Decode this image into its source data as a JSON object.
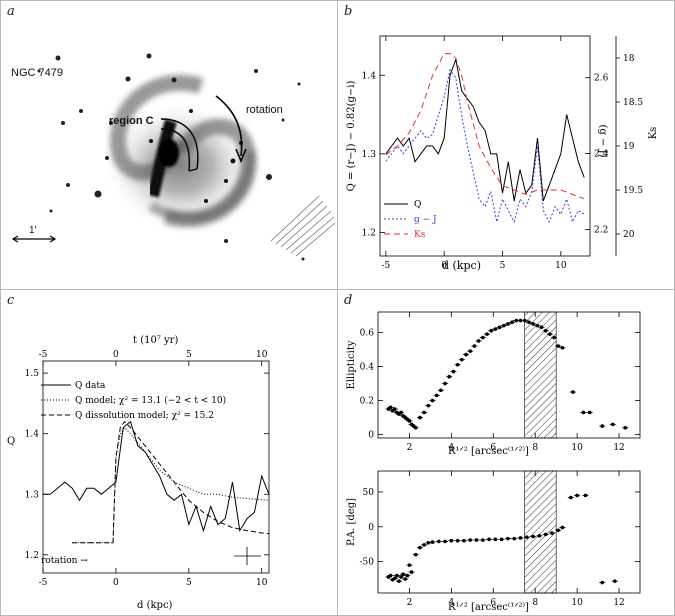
{
  "panels": {
    "a": {
      "label": "a",
      "galaxy_name": "NGC 7479",
      "region_label": "region C",
      "rotation_label": "rotation",
      "scale_label": "1′"
    },
    "b": {
      "label": "b",
      "y_left_label": "Q = (r−J) − 0.82(g−i)",
      "y_right1_label": "(g − J)",
      "y_right2_label": "Ks",
      "x_label": "d (kpc)",
      "legend": [
        "Q",
        "g − J",
        "Ks"
      ]
    },
    "c": {
      "label": "c",
      "top_axis_label": "t (10⁷ yr)",
      "x_label": "d (kpc)",
      "y_label": "Q",
      "legend": [
        "Q data",
        "Q model; χ² = 13.1 (−2 < t < 10)",
        "Q dissolution model; χ² = 15.2"
      ],
      "rotation_note": "rotation →"
    },
    "d": {
      "label": "d",
      "top_ylabel": "Ellipticity",
      "bottom_ylabel": "P.A. [deg]",
      "x_label": "R¹ᐟ² [arcsec⁽¹ᐟ²⁾]"
    }
  },
  "chart_data": [
    {
      "id": "b",
      "type": "line",
      "xlabel": "d (kpc)",
      "ylabel": "Q = (r−J) − 0.82(g−i)",
      "xlim": [
        -5.5,
        12.5
      ],
      "ylim": [
        1.17,
        1.45
      ],
      "x_ticks": [
        -5,
        0,
        5,
        10
      ],
      "y_ticks": [
        1.2,
        1.3,
        1.4
      ],
      "right_axes": [
        {
          "label": "(g − J)",
          "ticks": [
            2.2,
            2.4,
            2.6
          ],
          "range": [
            2.13,
            2.71
          ]
        },
        {
          "label": "Ks",
          "ticks": [
            18,
            18.5,
            19,
            19.5,
            20
          ],
          "range": [
            17.75,
            20.25
          ],
          "inverted": true
        }
      ],
      "series": [
        {
          "name": "Q",
          "color": "#000000",
          "dash": "",
          "axis": "left",
          "x": [
            -5,
            -4.5,
            -4,
            -3.5,
            -3,
            -2.5,
            -2,
            -1.5,
            -1,
            -0.5,
            0,
            0.5,
            1,
            1.5,
            2,
            2.5,
            3,
            3.5,
            4,
            4.5,
            5,
            5.5,
            6,
            6.5,
            7,
            7.5,
            8,
            8.5,
            9,
            9.5,
            10,
            10.5,
            11,
            11.5,
            12
          ],
          "values": [
            1.3,
            1.31,
            1.32,
            1.31,
            1.32,
            1.29,
            1.3,
            1.31,
            1.31,
            1.3,
            1.32,
            1.4,
            1.42,
            1.38,
            1.37,
            1.36,
            1.34,
            1.33,
            1.3,
            1.3,
            1.25,
            1.29,
            1.24,
            1.28,
            1.25,
            1.26,
            1.32,
            1.24,
            1.26,
            1.28,
            1.3,
            1.35,
            1.32,
            1.29,
            1.27
          ]
        },
        {
          "name": "g − J",
          "color": "#3b3bd6",
          "dash": "2,2",
          "axis": "right1",
          "x": [
            -5,
            -4.5,
            -4,
            -3.5,
            -3,
            -2.5,
            -2,
            -1.5,
            -1,
            -0.5,
            0,
            0.5,
            1,
            1.5,
            2,
            2.5,
            3,
            3.5,
            4,
            4.5,
            5,
            5.5,
            6,
            6.5,
            7,
            7.5,
            8,
            8.5,
            9,
            9.5,
            10,
            10.5,
            11,
            11.5,
            12
          ],
          "values": [
            2.38,
            2.4,
            2.42,
            2.4,
            2.42,
            2.44,
            2.46,
            2.44,
            2.45,
            2.5,
            2.55,
            2.62,
            2.6,
            2.5,
            2.42,
            2.35,
            2.28,
            2.26,
            2.3,
            2.22,
            2.28,
            2.25,
            2.22,
            2.28,
            2.26,
            2.3,
            2.42,
            2.25,
            2.22,
            2.26,
            2.24,
            2.28,
            2.22,
            2.25,
            2.24
          ]
        },
        {
          "name": "Ks",
          "color": "#e03030",
          "dash": "6,4",
          "axis": "right2",
          "x": [
            -5,
            -4,
            -3,
            -2,
            -1,
            0,
            0.5,
            1,
            1.5,
            2,
            3,
            4,
            5,
            6,
            7,
            8,
            9,
            10,
            11,
            12
          ],
          "values": [
            19.1,
            19.0,
            18.85,
            18.6,
            18.2,
            17.95,
            17.95,
            18.0,
            18.2,
            18.5,
            19.0,
            19.25,
            19.45,
            19.5,
            19.55,
            19.5,
            19.5,
            19.5,
            19.55,
            19.6
          ]
        }
      ]
    },
    {
      "id": "c",
      "type": "line",
      "xlabel": "d (kpc)",
      "ylabel": "Q",
      "top_xlabel": "t (10⁷ yr)",
      "xlim": [
        -5,
        10.5
      ],
      "ylim": [
        1.17,
        1.52
      ],
      "x_ticks": [
        -5,
        0,
        5,
        10
      ],
      "top_ticks": [
        -5,
        0,
        5,
        10
      ],
      "y_ticks": [
        1.2,
        1.3,
        1.4,
        1.5
      ],
      "series": [
        {
          "name": "Q data",
          "color": "#000000",
          "dash": "",
          "x": [
            -5,
            -4.5,
            -4,
            -3.5,
            -3,
            -2.5,
            -2,
            -1.5,
            -1,
            -0.5,
            0,
            0.5,
            1,
            1.5,
            2,
            2.5,
            3,
            3.5,
            4,
            4.5,
            5,
            5.5,
            6,
            6.5,
            7,
            7.5,
            8,
            8.5,
            9,
            9.5,
            10,
            10.5
          ],
          "values": [
            1.3,
            1.3,
            1.31,
            1.32,
            1.31,
            1.29,
            1.31,
            1.31,
            1.3,
            1.31,
            1.32,
            1.41,
            1.42,
            1.38,
            1.37,
            1.35,
            1.33,
            1.3,
            1.29,
            1.3,
            1.25,
            1.28,
            1.24,
            1.28,
            1.25,
            1.26,
            1.32,
            1.24,
            1.26,
            1.27,
            1.33,
            1.3
          ]
        },
        {
          "name": "Q model",
          "color": "#000000",
          "dash": "1,2",
          "x": [
            -3,
            -0.2,
            0,
            0.3,
            0.6,
            1,
            2,
            3,
            4,
            5,
            6,
            7,
            8,
            9,
            10,
            10.5
          ],
          "values": [
            1.22,
            1.22,
            1.36,
            1.4,
            1.41,
            1.4,
            1.37,
            1.34,
            1.32,
            1.31,
            1.3,
            1.3,
            1.295,
            1.293,
            1.291,
            1.29
          ]
        },
        {
          "name": "Q dissolution model",
          "color": "#000000",
          "dash": "5,3",
          "x": [
            -3,
            -0.2,
            0,
            0.3,
            0.6,
            1,
            2,
            3,
            4,
            5,
            6,
            7,
            8,
            9,
            10,
            10.5
          ],
          "values": [
            1.22,
            1.22,
            1.36,
            1.41,
            1.42,
            1.41,
            1.38,
            1.35,
            1.32,
            1.29,
            1.27,
            1.255,
            1.245,
            1.24,
            1.236,
            1.235
          ]
        }
      ]
    },
    {
      "id": "d-top",
      "type": "scatter",
      "xlabel": "R¹ᐟ² [arcsec⁽¹ᐟ²⁾]",
      "ylabel": "Ellipticity",
      "xlim": [
        0.5,
        13
      ],
      "ylim": [
        -0.02,
        0.72
      ],
      "x_ticks": [
        2,
        4,
        6,
        8,
        10,
        12
      ],
      "y_ticks": [
        0,
        0.2,
        0.4,
        0.6
      ],
      "shaded_x_range": [
        7.5,
        9
      ],
      "x": [
        1,
        1.1,
        1.2,
        1.3,
        1.4,
        1.5,
        1.6,
        1.7,
        1.8,
        1.9,
        2,
        2.1,
        2.2,
        2.3,
        2.5,
        2.7,
        2.9,
        3.1,
        3.3,
        3.5,
        3.7,
        3.9,
        4.1,
        4.3,
        4.5,
        4.7,
        4.9,
        5.1,
        5.3,
        5.5,
        5.7,
        5.9,
        6.1,
        6.3,
        6.5,
        6.7,
        6.9,
        7.1,
        7.3,
        7.5,
        7.7,
        7.9,
        8.1,
        8.3,
        8.5,
        8.7,
        8.9,
        9.1,
        9.3,
        9.8,
        10.3,
        10.6,
        11.2,
        11.7,
        12.3
      ],
      "values": [
        0.15,
        0.16,
        0.14,
        0.15,
        0.13,
        0.12,
        0.13,
        0.11,
        0.1,
        0.09,
        0.08,
        0.06,
        0.05,
        0.04,
        0.1,
        0.13,
        0.17,
        0.2,
        0.23,
        0.26,
        0.3,
        0.34,
        0.37,
        0.41,
        0.44,
        0.47,
        0.49,
        0.52,
        0.55,
        0.57,
        0.59,
        0.61,
        0.62,
        0.63,
        0.64,
        0.65,
        0.66,
        0.67,
        0.67,
        0.67,
        0.66,
        0.65,
        0.64,
        0.63,
        0.61,
        0.59,
        0.57,
        0.52,
        0.51,
        0.25,
        0.13,
        0.13,
        0.05,
        0.06,
        0.04
      ]
    },
    {
      "id": "d-bottom",
      "type": "scatter",
      "xlabel": "R¹ᐟ² [arcsec⁽¹ᐟ²⁾]",
      "ylabel": "P.A. [deg]",
      "xlim": [
        0.5,
        13
      ],
      "ylim": [
        -95,
        80
      ],
      "x_ticks": [
        2,
        4,
        6,
        8,
        10,
        12
      ],
      "y_ticks": [
        -50,
        0,
        50
      ],
      "shaded_x_range": [
        7.5,
        9
      ],
      "x": [
        1,
        1.1,
        1.2,
        1.3,
        1.4,
        1.5,
        1.6,
        1.7,
        1.8,
        1.9,
        2,
        2.1,
        2.3,
        2.5,
        2.7,
        2.9,
        3.1,
        3.4,
        3.7,
        4.0,
        4.3,
        4.6,
        4.9,
        5.2,
        5.5,
        5.8,
        6.1,
        6.4,
        6.7,
        7.0,
        7.3,
        7.6,
        7.9,
        8.2,
        8.5,
        8.8,
        9.1,
        9.3,
        9.7,
        10.0,
        10.4,
        11.2,
        11.8
      ],
      "values": [
        -72,
        -70,
        -76,
        -74,
        -70,
        -78,
        -72,
        -68,
        -75,
        -70,
        -55,
        -65,
        -40,
        -30,
        -26,
        -23,
        -22,
        -21,
        -21,
        -20,
        -20,
        -20,
        -19,
        -19,
        -19,
        -18,
        -18,
        -18,
        -17,
        -17,
        -16,
        -15,
        -14,
        -13,
        -11,
        -9,
        -5,
        -1,
        42,
        45,
        45,
        -80,
        -78
      ]
    }
  ]
}
